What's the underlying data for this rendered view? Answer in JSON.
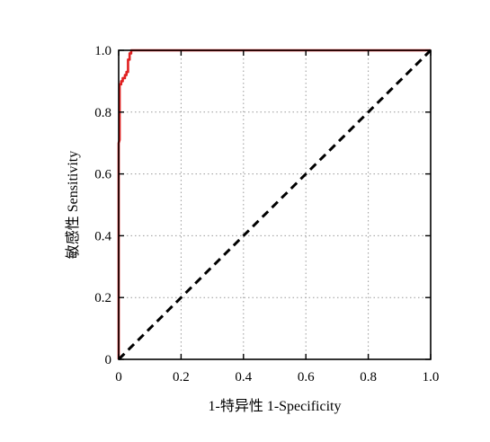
{
  "chart_data": {
    "type": "line",
    "title": "",
    "xlabel": "1-特异性 1-Specificity",
    "ylabel": "敏感性 Sensitivity",
    "xlim": [
      0,
      1
    ],
    "ylim": [
      0,
      1
    ],
    "xticks": [
      "0",
      "0.2",
      "0.4",
      "0.6",
      "0.8",
      "1.0"
    ],
    "yticks": [
      "0",
      "0.2",
      "0.4",
      "0.6",
      "0.8",
      "1.0"
    ],
    "grid": true,
    "legend": "none",
    "series": [
      {
        "style": "solid",
        "color": "#e02020",
        "x": [
          0,
          0,
          0.003,
          0.003,
          0.008,
          0.008,
          0.013,
          0.013,
          0.02,
          0.02,
          0.025,
          0.025,
          0.03,
          0.03,
          0.035,
          0.035,
          0.04,
          0.04,
          1.0
        ],
        "y": [
          0,
          0.7,
          0.71,
          0.89,
          0.89,
          0.9,
          0.9,
          0.91,
          0.91,
          0.92,
          0.92,
          0.93,
          0.93,
          0.97,
          0.97,
          0.99,
          0.99,
          1.0,
          1.0
        ]
      },
      {
        "style": "dashed",
        "color": "#000000",
        "x": [
          0,
          1
        ],
        "y": [
          0,
          1
        ]
      }
    ]
  }
}
